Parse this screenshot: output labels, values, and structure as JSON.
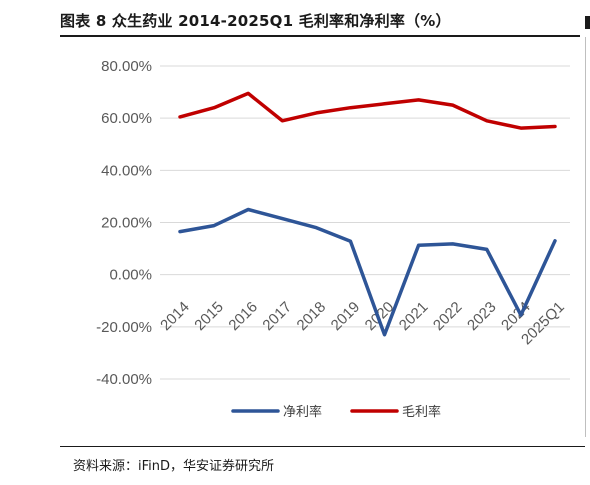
{
  "header": {
    "title": "图表 8 众生药业 2014-2025Q1 毛利率和净利率（%）"
  },
  "footer": {
    "source": "资料来源：iFinD，华安证券研究所"
  },
  "chart_data": {
    "type": "line",
    "title": "",
    "xlabel": "",
    "ylabel": "",
    "categories": [
      "2014",
      "2015",
      "2016",
      "2017",
      "2018",
      "2019",
      "2020",
      "2021",
      "2022",
      "2023",
      "2024",
      "2025Q1"
    ],
    "y_ticks": [
      "80.00%",
      "60.00%",
      "40.00%",
      "20.00%",
      "0.00%",
      "-20.00%",
      "-40.00%"
    ],
    "ylim": [
      -40,
      80
    ],
    "grid": true,
    "legend_position": "bottom",
    "series": [
      {
        "name": "净利率",
        "color": "#2E5597",
        "values": [
          16.5,
          18.8,
          25.0,
          21.5,
          18.0,
          12.8,
          -23.0,
          11.3,
          11.8,
          9.7,
          -15.5,
          13.0
        ]
      },
      {
        "name": "毛利率",
        "color": "#C00000",
        "values": [
          60.5,
          64.0,
          69.5,
          59.0,
          62.0,
          64.0,
          65.5,
          67.0,
          65.0,
          59.0,
          56.2,
          56.8
        ]
      }
    ]
  }
}
